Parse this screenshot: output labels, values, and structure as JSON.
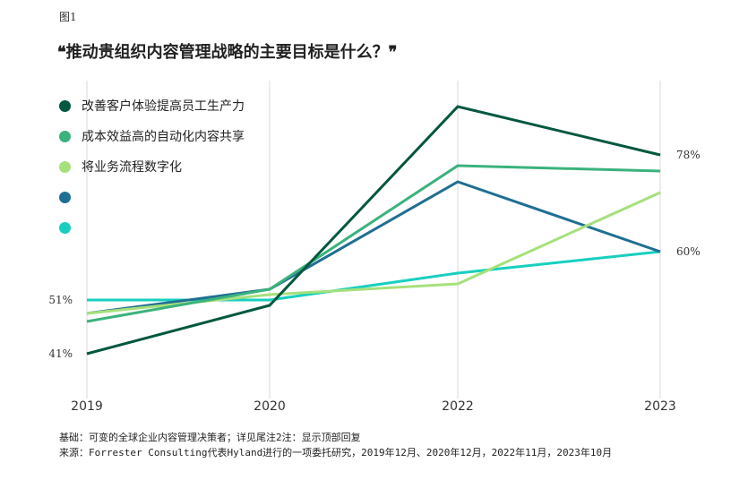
{
  "figure_label": "图1",
  "question": "❝推动贵组织内容管理战略的主要目标是什么？❞",
  "colors": {
    "dark_green": "#00573f",
    "mid_green": "#3bb27c",
    "light_green": "#a6e07c",
    "blue": "#1f6f93",
    "cyan": "#17cfc0",
    "grid": "#e6e6e6"
  },
  "chart_data": {
    "type": "line",
    "title": "❝推动贵组织内容管理战略的主要目标是什么？❞",
    "x": [
      "2019",
      "2020",
      "2022",
      "2023"
    ],
    "xlabel": "",
    "ylabel": "",
    "ylim": [
      38,
      88
    ],
    "grid": "vertical",
    "legend_position": "top-left",
    "series": [
      {
        "name": "改善客户体验提高员工生产力",
        "color": "#00573f",
        "values": [
          41,
          50,
          87,
          78
        ]
      },
      {
        "name": "成本效益高的自动化内容共享",
        "color": "#3bb27c",
        "values": [
          47,
          53,
          76,
          75
        ]
      },
      {
        "name": "将业务流程数字化",
        "color": "#a6e07c",
        "values": [
          48.5,
          52,
          54,
          71
        ]
      },
      {
        "name": "",
        "color": "#1f6f93",
        "values": [
          48.5,
          53,
          73,
          60
        ]
      },
      {
        "name": "",
        "color": "#17cfc0",
        "values": [
          51,
          51,
          56,
          60
        ]
      }
    ],
    "annotations": [
      {
        "text": "51%",
        "x": "2019",
        "y": 51,
        "side": "left"
      },
      {
        "text": "41%",
        "x": "2019",
        "y": 41,
        "side": "left"
      },
      {
        "text": "78%",
        "x": "2023",
        "y": 78,
        "side": "right"
      },
      {
        "text": "60%",
        "x": "2023",
        "y": 60,
        "side": "right"
      }
    ]
  },
  "footer": {
    "line1": "基础：可变的全球企业内容管理决策者；详见尾注2注：显示顶部回复",
    "line2": "来源：Forrester Consulting代表Hyland进行的一项委托研究，2019年12月、2020年12月，2022年11月，2023年10月"
  }
}
